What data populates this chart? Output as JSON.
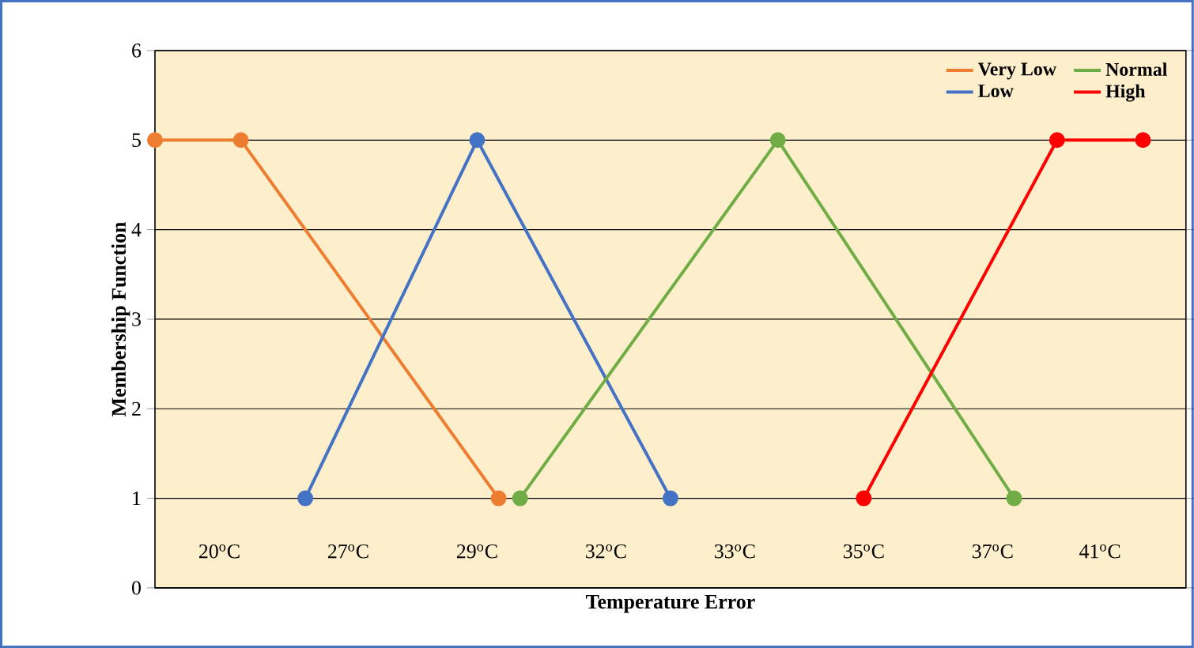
{
  "chart_data": {
    "type": "line",
    "xlabel": "Temperature Error",
    "ylabel": "Membership Function",
    "categories": [
      null,
      null,
      null,
      "20$^{o}$C",
      null,
      null,
      null,
      null,
      null,
      "27$^{o}$C",
      null,
      null,
      null,
      null,
      null,
      "29$^{o}$C",
      null,
      null,
      null,
      null,
      null,
      "32$^{o}$C",
      null,
      null,
      null,
      null,
      null,
      "33$^{o}$C",
      null,
      null,
      null,
      null,
      null,
      "35$^{o}$C",
      null,
      null,
      null,
      null,
      null,
      "37$^{o}$C",
      null,
      null,
      null,
      null,
      "41$^{o}$C",
      null,
      null,
      null,
      null
    ],
    "ylim": [
      0,
      6
    ],
    "yticks": [
      0,
      1,
      2,
      3,
      4,
      5,
      6
    ],
    "grid": "y",
    "legend": "top right",
    "marker": "circle",
    "line_style": "solid",
    "series": [
      {
        "name": "Very Low",
        "color": "#ED7D31",
        "values": [
          5,
          null,
          null,
          null,
          5,
          null,
          null,
          null,
          null,
          null,
          null,
          null,
          null,
          null,
          null,
          null,
          1,
          null,
          null,
          null,
          null,
          null,
          null,
          null,
          null,
          null,
          null,
          null,
          null,
          null,
          null,
          null,
          null,
          null,
          null,
          null,
          null,
          null,
          null,
          null,
          null,
          null,
          null,
          null,
          null,
          null,
          null,
          null,
          null
        ]
      },
      {
        "name": "Low",
        "color": "#4472C4",
        "values": [
          null,
          null,
          null,
          null,
          null,
          null,
          null,
          1,
          null,
          null,
          null,
          null,
          null,
          null,
          null,
          5,
          null,
          null,
          null,
          null,
          null,
          null,
          null,
          null,
          1,
          null,
          null,
          null,
          null,
          null,
          null,
          null,
          null,
          null,
          null,
          null,
          null,
          null,
          null,
          null,
          null,
          null,
          null,
          null,
          null,
          null,
          null,
          null,
          null
        ]
      },
      {
        "name": "Normal",
        "color": "#70AD47",
        "values": [
          null,
          null,
          null,
          null,
          null,
          null,
          null,
          null,
          null,
          null,
          null,
          null,
          null,
          null,
          null,
          null,
          null,
          1,
          null,
          null,
          null,
          null,
          null,
          null,
          null,
          null,
          null,
          null,
          null,
          5,
          null,
          null,
          null,
          null,
          null,
          null,
          null,
          null,
          null,
          null,
          1,
          null,
          null,
          null,
          null,
          null,
          null,
          null,
          null
        ]
      },
      {
        "name": "High",
        "color": "#FF0000",
        "values": [
          null,
          null,
          null,
          null,
          null,
          null,
          null,
          null,
          null,
          null,
          null,
          null,
          null,
          null,
          null,
          null,
          null,
          null,
          null,
          null,
          null,
          null,
          null,
          null,
          null,
          null,
          null,
          null,
          null,
          null,
          null,
          null,
          null,
          1,
          null,
          null,
          null,
          null,
          null,
          null,
          null,
          null,
          5,
          null,
          null,
          null,
          5,
          null,
          null
        ]
      }
    ]
  }
}
